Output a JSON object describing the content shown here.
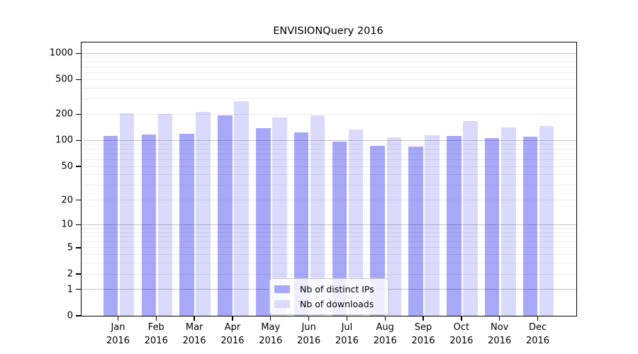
{
  "chart_data": {
    "type": "bar",
    "title": "ENVISIONQuery 2016",
    "categories": [
      "Jan",
      "Feb",
      "Mar",
      "Apr",
      "May",
      "Jun",
      "Jul",
      "Aug",
      "Sep",
      "Oct",
      "Nov",
      "Dec"
    ],
    "x_sublabel": "2016",
    "series": [
      {
        "name": "Nb of distinct IPs",
        "color": "rgba(0,0,238,0.34)",
        "color_on_white": "#a8a8f9",
        "values": [
          112,
          116,
          120,
          194,
          138,
          125,
          97,
          87,
          85,
          112,
          106,
          111
        ]
      },
      {
        "name": "Nb of downloads",
        "color": "rgba(0,0,238,0.145)",
        "color_on_white": "#dbdbfa",
        "values": [
          205,
          202,
          215,
          281,
          182,
          193,
          133,
          108,
          115,
          166,
          140,
          148
        ]
      }
    ],
    "y_ticks": [
      0,
      1,
      2,
      5,
      10,
      20,
      50,
      100,
      200,
      500,
      1000
    ],
    "y_major_gridlines": [
      1,
      10,
      100,
      1000
    ],
    "y_scale": "symlog (log(1+x))",
    "y_axis_max": 1330,
    "ylim": [
      0,
      1330
    ],
    "xlabel": "",
    "ylabel": "",
    "grid": "horizontal, major + log minor",
    "legend_position": "lower center",
    "background_color": "#ffffff",
    "frame_color": "#000000",
    "major_grid_color": "#c4c4c4",
    "minor_grid_color": "#ebebeb"
  }
}
